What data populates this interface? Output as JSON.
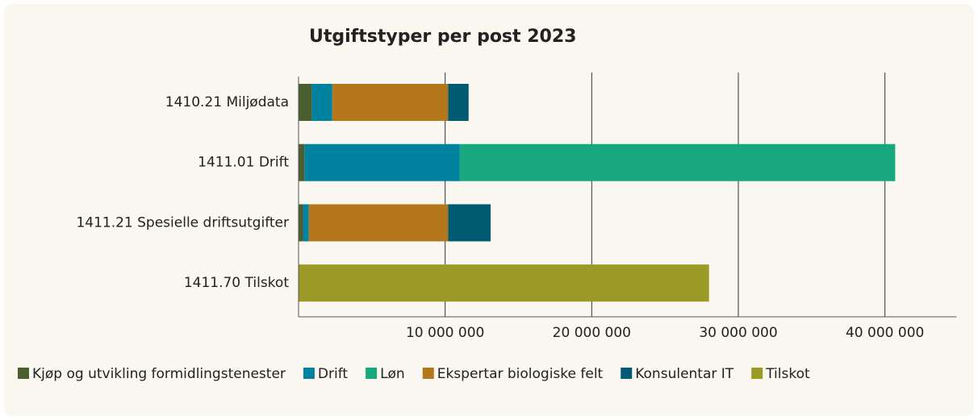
{
  "chart_data": {
    "type": "stacked_barh",
    "title": "Utgiftstyper per post 2023",
    "categories": [
      "1410.21 Miljødata",
      "1411.01 Drift",
      "1411.21 Spesielle driftsutgifter",
      "1411.70 Tilskot"
    ],
    "series": [
      {
        "name": "Kjøp og utvikling formidlingstenester",
        "color": "#4a5e2e",
        "values": [
          900000,
          400000,
          300000,
          0
        ]
      },
      {
        "name": "Drift",
        "color": "#00829e",
        "values": [
          1400000,
          10600000,
          400000,
          0
        ]
      },
      {
        "name": "Løn",
        "color": "#17a97d",
        "values": [
          0,
          29700000,
          0,
          0
        ]
      },
      {
        "name": "Ekspertar biologiske felt",
        "color": "#b5771c",
        "values": [
          7900000,
          0,
          9500000,
          0
        ]
      },
      {
        "name": "Konsulentar IT",
        "color": "#005a72",
        "values": [
          1400000,
          0,
          2900000,
          0
        ]
      },
      {
        "name": "Tilskot",
        "color": "#9c9a26",
        "values": [
          0,
          0,
          0,
          28000000
        ]
      }
    ],
    "xlim": [
      0,
      45000000
    ],
    "xticks": [
      {
        "value": 10000000,
        "label": "10 000 000"
      },
      {
        "value": 20000000,
        "label": "20 000 000"
      },
      {
        "value": 30000000,
        "label": "30 000 000"
      },
      {
        "value": 40000000,
        "label": "40 000 000"
      }
    ],
    "grid": true,
    "legend": "bottom"
  }
}
